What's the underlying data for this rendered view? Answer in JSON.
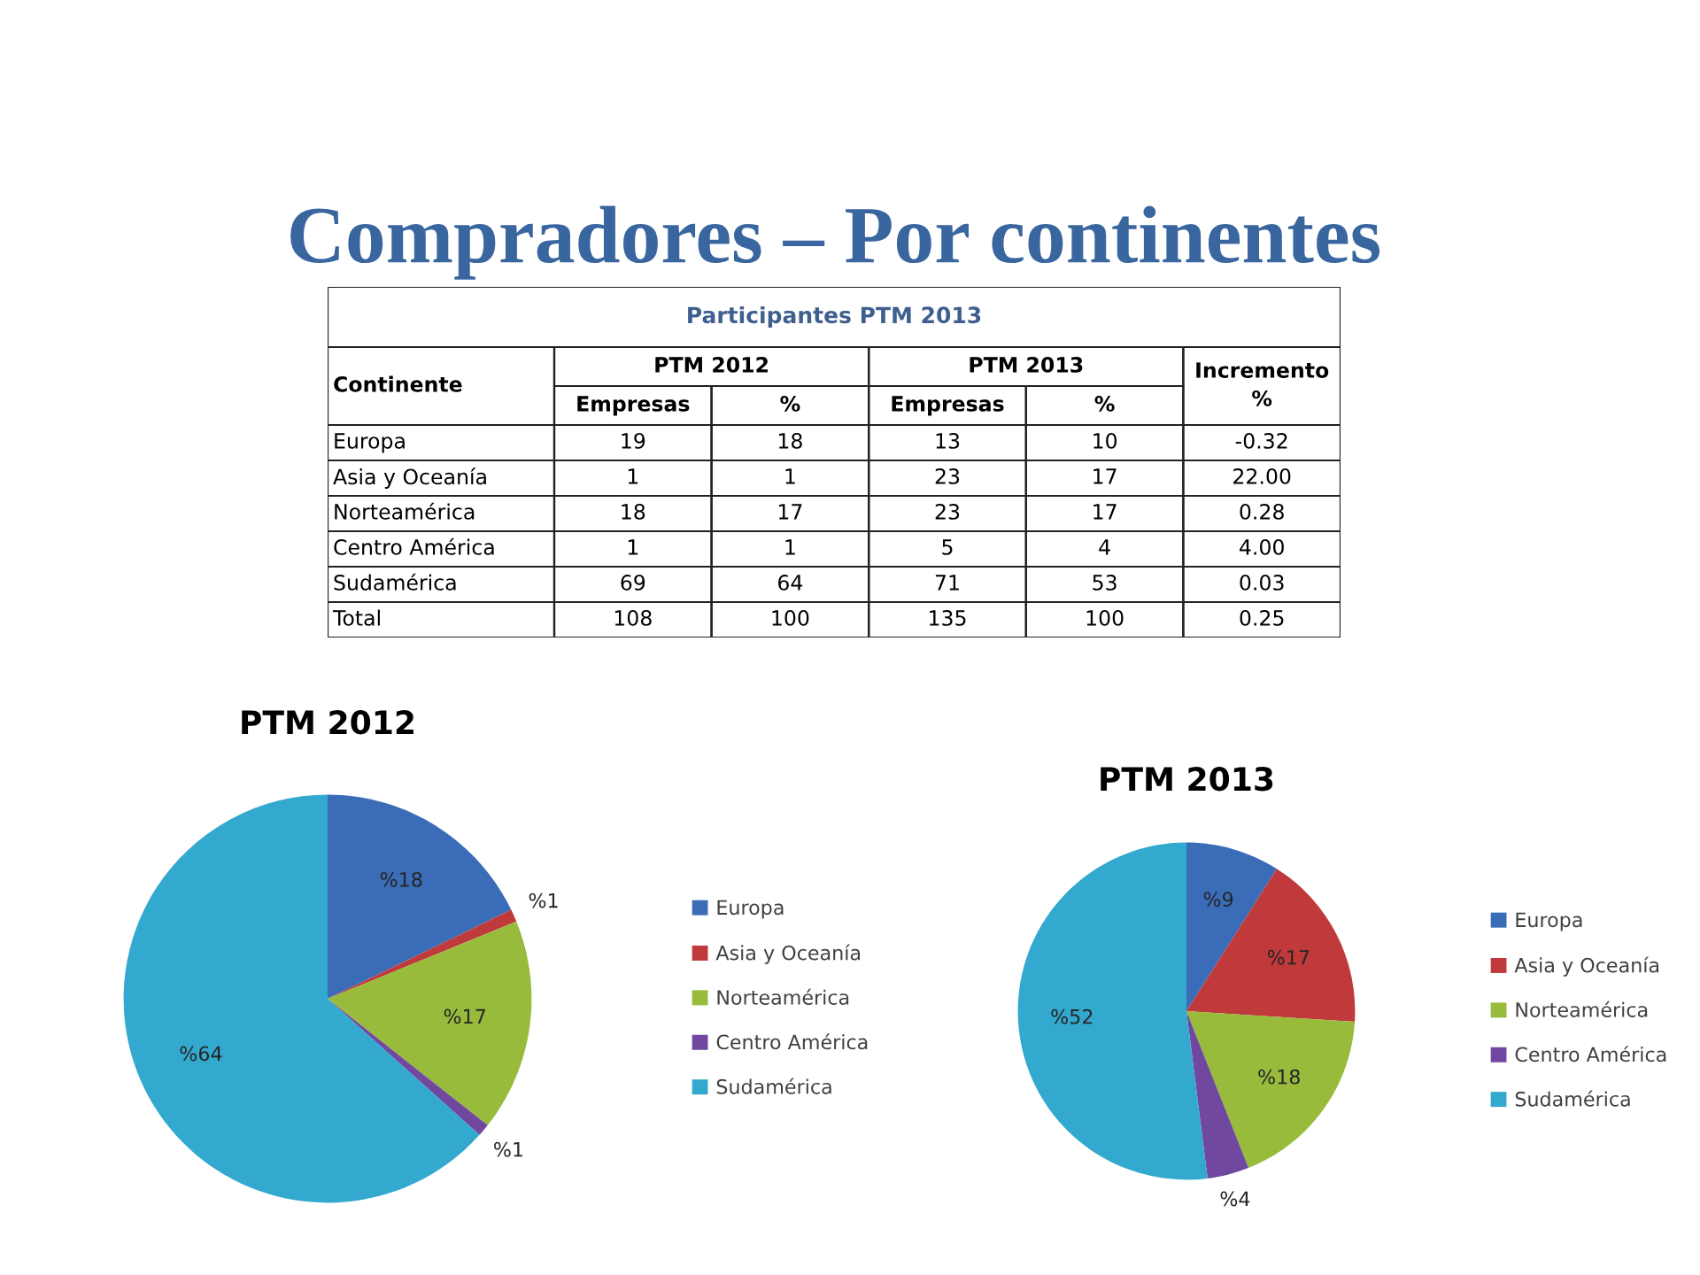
{
  "chart_data": [
    {
      "type": "other",
      "title": "Compradores – Por continentes",
      "subtitle": "Participantes PTM 2013",
      "ylabel": "Continente",
      "annotations": [
        "PTM 2012",
        "PTM 2013"
      ],
      "categories": [
        "Europa",
        "Asia y Oceanía",
        "Norteamérica",
        "Centro América",
        "Sudamérica",
        "Total"
      ],
      "series": [
        {
          "name": "Empresas",
          "values": [
            19,
            1,
            18,
            1,
            69,
            108
          ]
        },
        {
          "name": "%",
          "values": [
            18,
            1,
            17,
            1,
            64,
            100
          ]
        },
        {
          "name": "Empresas",
          "values": [
            13,
            23,
            23,
            5,
            71,
            135
          ]
        },
        {
          "name": "%",
          "values": [
            10,
            17,
            17,
            4,
            53,
            100
          ]
        },
        {
          "name": "Incremento %",
          "values": [
            -0.32,
            22.0,
            0.28,
            4.0,
            0.03,
            0.25
          ],
          "value_labels": [
            "-0.32",
            "22.00",
            "0.28",
            "4.00",
            "0.03",
            "0.25"
          ]
        }
      ],
      "data_labels": true
    },
    {
      "type": "pie",
      "title": "PTM 2012",
      "categories": [
        "Europa",
        "Asia y Oceanía",
        "Norteamérica",
        "Centro América",
        "Sudamérica"
      ],
      "values": [
        18,
        1,
        17,
        1,
        64
      ],
      "value_labels": [
        "%18",
        "%1",
        "%17",
        "%1",
        "%64"
      ],
      "colors": [
        "#3a6cb8",
        "#c0393b",
        "#98bb3c",
        "#7048a0",
        "#33a9cf"
      ],
      "legend": "right"
    },
    {
      "type": "pie",
      "title": "PTM 2013",
      "categories": [
        "Europa",
        "Asia y Oceanía",
        "Norteamérica",
        "Centro América",
        "Sudamérica"
      ],
      "values": [
        9,
        17,
        18,
        4,
        52
      ],
      "value_labels": [
        "%9",
        "%17",
        "%18",
        "%4",
        "%52"
      ],
      "colors": [
        "#3a6cb8",
        "#c0393b",
        "#98bb3c",
        "#7048a0",
        "#33a9cf"
      ],
      "legend": "right"
    }
  ]
}
